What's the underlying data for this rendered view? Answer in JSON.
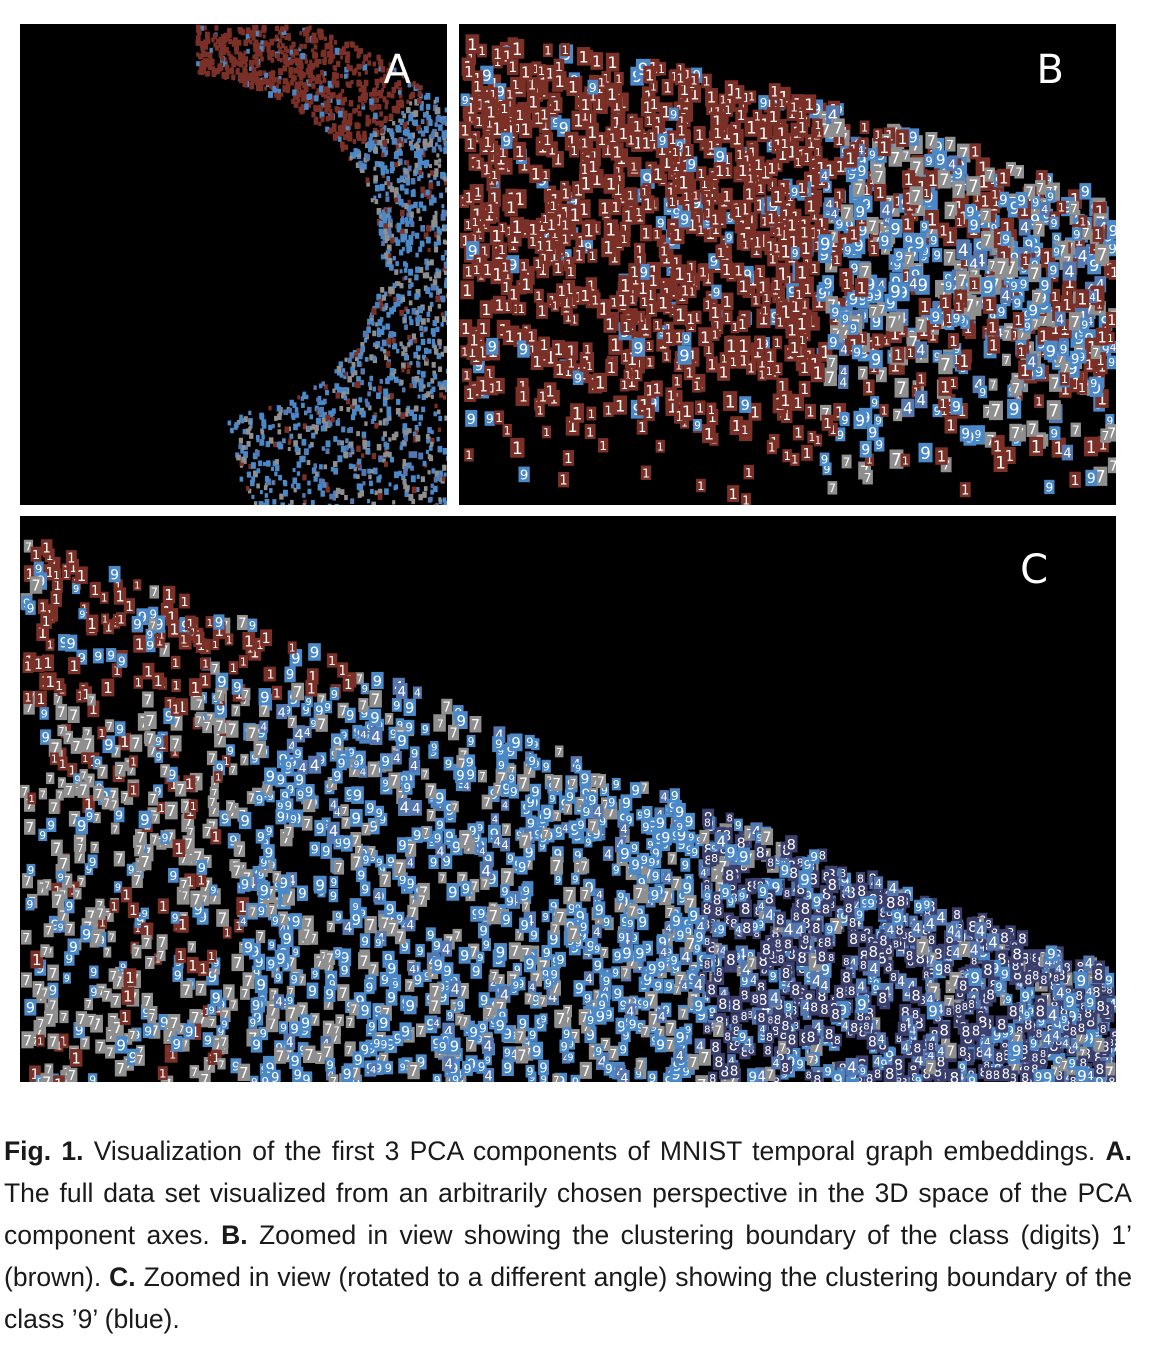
{
  "panels": [
    {
      "id": "A",
      "label": "A"
    },
    {
      "id": "B",
      "label": "B"
    },
    {
      "id": "C",
      "label": "C"
    }
  ],
  "classes": [
    {
      "digit": "1",
      "color": "#7a3026"
    },
    {
      "digit": "9",
      "color": "#4a88c8"
    },
    {
      "digit": "7",
      "color": "#8f8f8f"
    },
    {
      "digit": "4",
      "color": "#5577b0"
    },
    {
      "digit": "8",
      "color": "#3a3f6e"
    }
  ],
  "caption": {
    "fig_label": "Fig. 1.",
    "intro": "Visualization of the first 3 PCA components of MNIST temporal graph embeddings.",
    "part_a_label": "A.",
    "part_a_text": "The full data set visualized from an arbitrarily chosen perspective in the 3D space of the PCA component axes.",
    "part_b_label": "B.",
    "part_b_text": "Zoomed in view showing the clustering boundary of the class (digits) 1’ (brown).",
    "part_c_label": "C.",
    "part_c_text": "Zoomed in view (rotated to a different angle) showing the clustering boundary of the class ’9’ (blue)."
  }
}
